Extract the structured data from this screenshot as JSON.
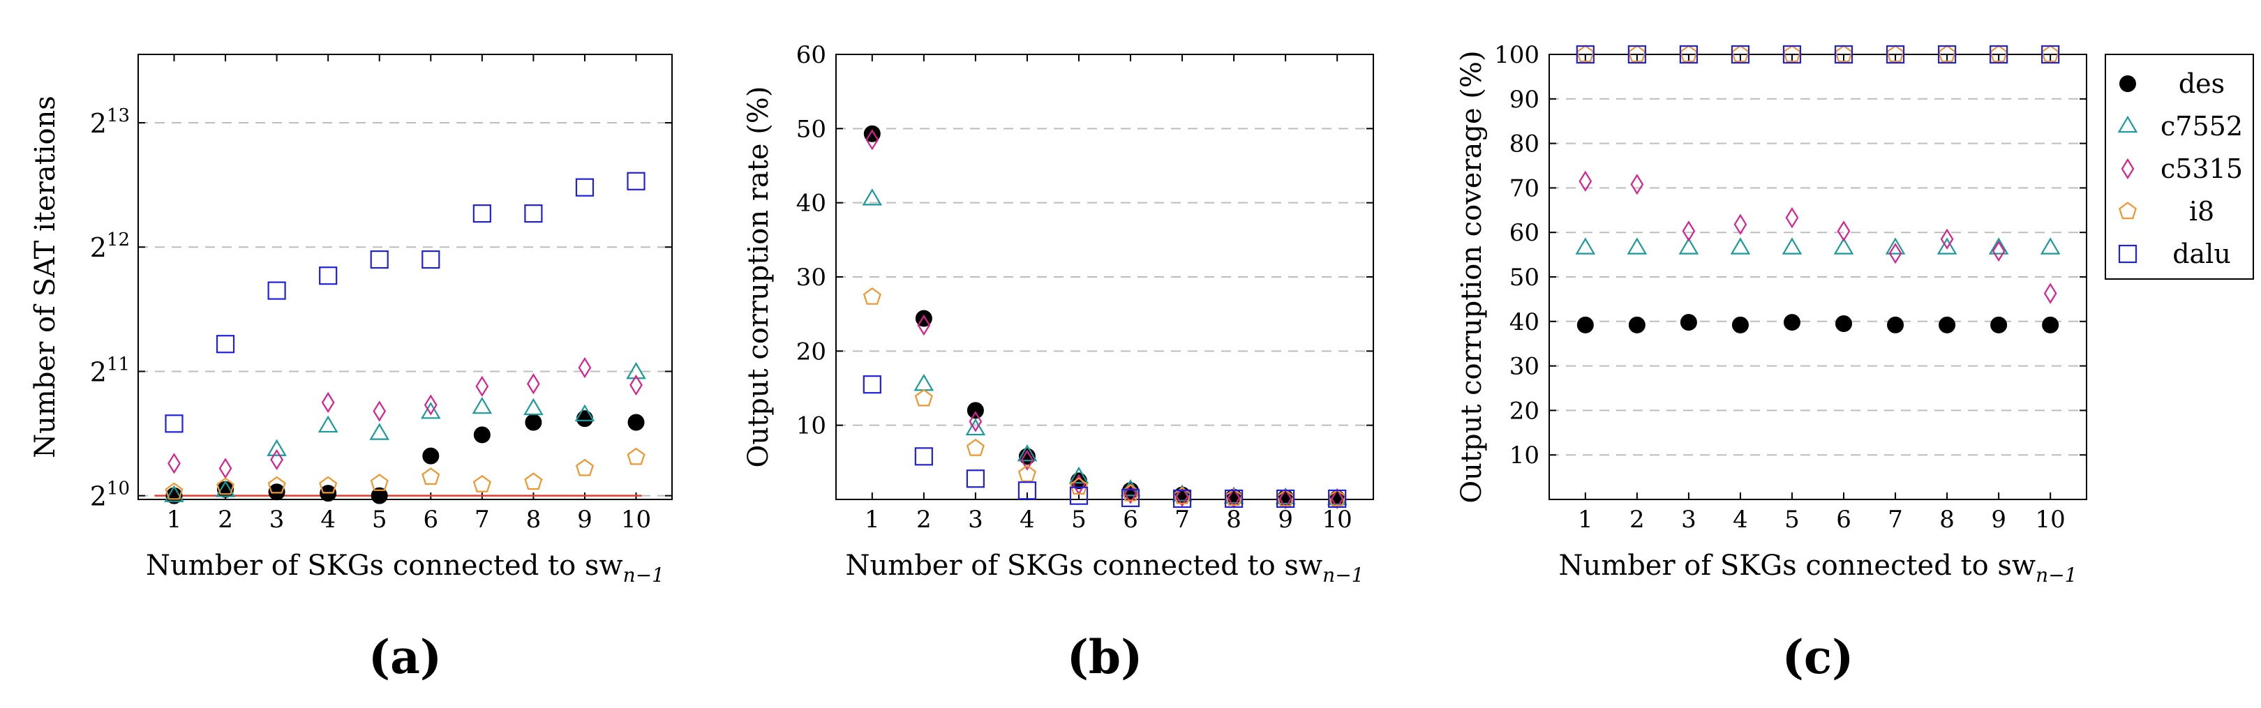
{
  "colors": {
    "des": "#000000",
    "c7552": "#1a9a9a",
    "c5315": "#d6218f",
    "i8": "#f0962e",
    "dalu": "#2020e0",
    "reference_line": "#e53b2a",
    "grid": "#bdbdbd",
    "axis": "#000000"
  },
  "legend": {
    "entries": [
      {
        "key": "des",
        "label": "des",
        "marker": "filled-circle"
      },
      {
        "key": "c7552",
        "label": "c7552",
        "marker": "triangle"
      },
      {
        "key": "c5315",
        "label": "c5315",
        "marker": "diamond"
      },
      {
        "key": "i8",
        "label": "i8",
        "marker": "pentagon"
      },
      {
        "key": "dalu",
        "label": "dalu",
        "marker": "square"
      }
    ]
  },
  "chart_data": [
    {
      "id": "a",
      "panel_label": "(a)",
      "type": "scatter",
      "title": "",
      "xlabel": "Number of SKGs connected to sw",
      "xlabel_subscript": "n−1",
      "ylabel": "Number of SAT iterations",
      "y_scale": "log2",
      "xlim": [
        0.3,
        10.7
      ],
      "ylim_log2": [
        9.97,
        13.55
      ],
      "x_ticks": [
        1,
        2,
        3,
        4,
        5,
        6,
        7,
        8,
        9,
        10
      ],
      "y_ticks": [
        {
          "value": 10,
          "label": "2",
          "exp": "10"
        },
        {
          "value": 11,
          "label": "2",
          "exp": "11"
        },
        {
          "value": 12,
          "label": "2",
          "exp": "12"
        },
        {
          "value": 13,
          "label": "2",
          "exp": "13"
        }
      ],
      "grid": "horizontal-dashed",
      "reference_line_log2": 10.0,
      "x": [
        1,
        2,
        3,
        4,
        5,
        6,
        7,
        8,
        9,
        10
      ],
      "series": [
        {
          "name": "des",
          "values_log2": [
            10.0,
            10.05,
            10.03,
            10.02,
            10.0,
            10.32,
            10.49,
            10.59,
            10.62,
            10.59
          ]
        },
        {
          "name": "c7552",
          "values_log2": [
            10.0,
            10.04,
            10.37,
            10.56,
            10.5,
            10.67,
            10.71,
            10.7,
            10.65,
            10.99
          ]
        },
        {
          "name": "c5315",
          "values_log2": [
            10.26,
            10.22,
            10.29,
            10.75,
            10.68,
            10.73,
            10.88,
            10.9,
            11.03,
            10.89
          ]
        },
        {
          "name": "i8",
          "values_log2": [
            10.03,
            10.07,
            10.08,
            10.08,
            10.1,
            10.15,
            10.09,
            10.11,
            10.22,
            10.31
          ]
        },
        {
          "name": "dalu",
          "values_log2": [
            10.58,
            11.22,
            11.65,
            11.77,
            11.9,
            11.9,
            12.27,
            12.27,
            12.48,
            12.53
          ]
        }
      ]
    },
    {
      "id": "b",
      "panel_label": "(b)",
      "type": "scatter",
      "title": "",
      "xlabel": "Number of SKGs connected to sw",
      "xlabel_subscript": "n−1",
      "ylabel": "Output corruption rate (%)",
      "xlim": [
        0.3,
        10.7
      ],
      "ylim": [
        0,
        60
      ],
      "x_ticks": [
        1,
        2,
        3,
        4,
        5,
        6,
        7,
        8,
        9,
        10
      ],
      "y_ticks": [
        10,
        20,
        30,
        40,
        50,
        60
      ],
      "grid": "horizontal-dashed",
      "x": [
        1,
        2,
        3,
        4,
        5,
        6,
        7,
        8,
        9,
        10
      ],
      "series": [
        {
          "name": "des",
          "values": [
            49.3,
            24.4,
            12.0,
            5.8,
            2.5,
            1.2,
            0.6,
            0.3,
            0.2,
            0.1
          ]
        },
        {
          "name": "c7552",
          "values": [
            40.5,
            15.5,
            9.5,
            6.0,
            3.0,
            1.3,
            0.6,
            0.3,
            0.2,
            0.1
          ]
        },
        {
          "name": "c5315",
          "values": [
            48.5,
            23.5,
            10.5,
            5.3,
            2.0,
            0.8,
            0.4,
            0.2,
            0.1,
            0.1
          ]
        },
        {
          "name": "i8",
          "values": [
            27.3,
            13.6,
            6.9,
            3.4,
            1.7,
            0.8,
            0.4,
            0.2,
            0.1,
            0.1
          ]
        },
        {
          "name": "dalu",
          "values": [
            15.5,
            5.8,
            2.8,
            1.2,
            0.5,
            0.2,
            0.1,
            0.1,
            0.1,
            0.1
          ]
        }
      ]
    },
    {
      "id": "c",
      "panel_label": "(c)",
      "type": "scatter",
      "title": "",
      "xlabel": "Number of SKGs connected to sw",
      "xlabel_subscript": "n−1",
      "ylabel": "Output corruption coverage (%)",
      "xlim": [
        0.3,
        10.7
      ],
      "ylim": [
        0,
        100
      ],
      "x_ticks": [
        1,
        2,
        3,
        4,
        5,
        6,
        7,
        8,
        9,
        10
      ],
      "y_ticks": [
        10,
        20,
        30,
        40,
        50,
        60,
        70,
        80,
        90,
        100
      ],
      "grid": "horizontal-dashed",
      "legend_position": "right",
      "x": [
        1,
        2,
        3,
        4,
        5,
        6,
        7,
        8,
        9,
        10
      ],
      "series": [
        {
          "name": "des",
          "values": [
            39.2,
            39.2,
            39.8,
            39.2,
            39.8,
            39.5,
            39.2,
            39.2,
            39.2,
            39.2
          ]
        },
        {
          "name": "c7552",
          "values": [
            56.5,
            56.5,
            56.5,
            56.5,
            56.5,
            56.5,
            56.5,
            56.5,
            56.5,
            56.5
          ]
        },
        {
          "name": "c5315",
          "values": [
            71.5,
            70.8,
            60.3,
            61.8,
            63.3,
            60.3,
            55.3,
            58.5,
            55.8,
            46.3
          ]
        },
        {
          "name": "i8",
          "values": [
            100,
            100,
            100,
            100,
            100,
            100,
            100,
            100,
            100,
            100
          ]
        },
        {
          "name": "dalu",
          "values": [
            100,
            100,
            100,
            100,
            100,
            100,
            100,
            100,
            100,
            100
          ]
        }
      ]
    }
  ]
}
